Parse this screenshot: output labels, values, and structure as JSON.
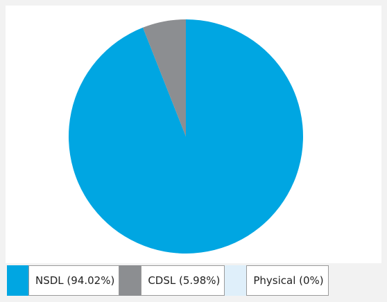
{
  "chart_data": {
    "type": "pie",
    "categories": [
      "NSDL (94.02%)",
      "CDSL (5.98%)",
      "Physical (0%)"
    ],
    "values": [
      94.02,
      5.98,
      0
    ],
    "colors": [
      "#00a6e2",
      "#8c8e91",
      "#dfeffa"
    ]
  }
}
